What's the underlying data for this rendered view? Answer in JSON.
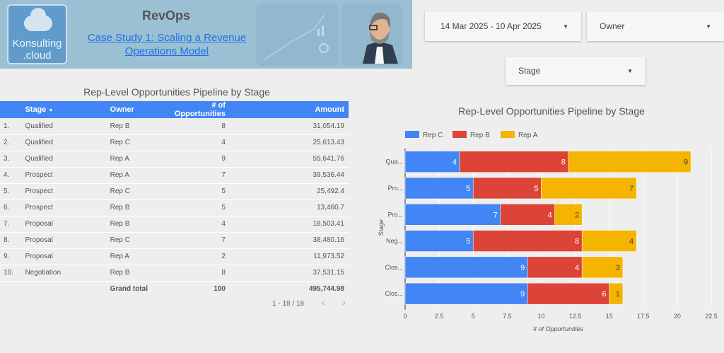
{
  "header": {
    "logo_text": "Konsulting .cloud",
    "title": "RevOps",
    "link": "Case Study 1: Scaling a Revenue Operations Model"
  },
  "filters": {
    "date_range": "14 Mar 2025 - 10 Apr 2025",
    "owner": "Owner",
    "stage": "Stage"
  },
  "table": {
    "title": "Rep-Level Opportunities Pipeline by Stage",
    "columns": [
      "Stage",
      "Owner",
      "# of Opportunities",
      "Amount"
    ],
    "rows": [
      [
        "1.",
        "Qualified",
        "Rep B",
        "8",
        "31,054.19"
      ],
      [
        "2.",
        "Qualified",
        "Rep C",
        "4",
        "25,613.43"
      ],
      [
        "3.",
        "Qualified",
        "Rep A",
        "9",
        "55,641.76"
      ],
      [
        "4.",
        "Prospect",
        "Rep A",
        "7",
        "39,536.44"
      ],
      [
        "5.",
        "Prospect",
        "Rep C",
        "5",
        "25,492.4"
      ],
      [
        "6.",
        "Prospect",
        "Rep B",
        "5",
        "13,460.7"
      ],
      [
        "7.",
        "Proposal",
        "Rep B",
        "4",
        "18,503.41"
      ],
      [
        "8.",
        "Proposal",
        "Rep C",
        "7",
        "38,480.16"
      ],
      [
        "9.",
        "Proposal",
        "Rep A",
        "2",
        "11,973.52"
      ],
      [
        "10.",
        "Negotiation",
        "Rep B",
        "8",
        "37,531.15"
      ]
    ],
    "total": {
      "label": "Grand total",
      "opps": "100",
      "amount": "495,744.98"
    },
    "pagination": "1 - 18 / 18"
  },
  "chart_data": {
    "type": "bar",
    "orientation": "horizontal",
    "stacked": true,
    "title": "Rep-Level Opportunities Pipeline by Stage",
    "categories": [
      "Qua...",
      "Pro...",
      "Pro...",
      "Neg...",
      "Clos...",
      "Clos..."
    ],
    "series": [
      {
        "name": "Rep C",
        "color": "#4285f4",
        "values": [
          4,
          5,
          7,
          5,
          9,
          9
        ]
      },
      {
        "name": "Rep B",
        "color": "#db4437",
        "values": [
          8,
          5,
          4,
          8,
          4,
          6
        ]
      },
      {
        "name": "Rep A",
        "color": "#f4b400",
        "values": [
          9,
          7,
          2,
          4,
          3,
          1
        ]
      }
    ],
    "xlabel": "# of Opportunities",
    "ylabel": "Stage",
    "xlim": [
      0,
      22.5
    ],
    "xticks": [
      "0",
      "2.5",
      "5",
      "7.5",
      "10",
      "12.5",
      "15",
      "17.5",
      "20",
      "22.5"
    ],
    "legend": "top-left",
    "grid": true
  }
}
